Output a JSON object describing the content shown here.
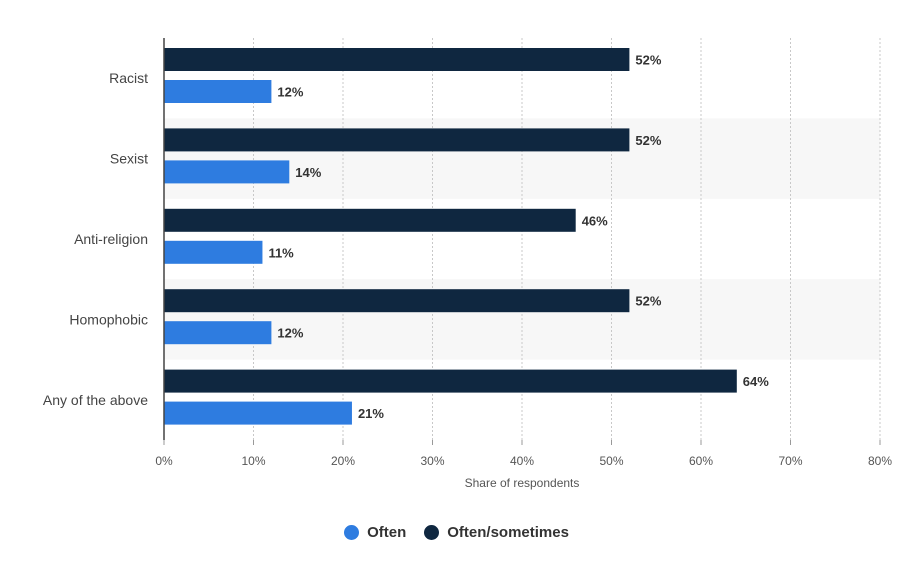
{
  "chart_data": {
    "type": "bar",
    "orientation": "horizontal",
    "categories": [
      "Racist",
      "Sexist",
      "Anti-religion",
      "Homophobic",
      "Any of the above"
    ],
    "series": [
      {
        "name": "Often/sometimes",
        "color": "#0f2740",
        "values": [
          52,
          52,
          46,
          52,
          64
        ],
        "labels": [
          "52%",
          "52%",
          "46%",
          "52%",
          "64%"
        ]
      },
      {
        "name": "Often",
        "color": "#2e7ce0",
        "values": [
          12,
          14,
          11,
          12,
          21
        ],
        "labels": [
          "12%",
          "14%",
          "11%",
          "12%",
          "21%"
        ]
      }
    ],
    "xlim": [
      0,
      80
    ],
    "xticks": [
      0,
      10,
      20,
      30,
      40,
      50,
      60,
      70,
      80
    ],
    "xtick_labels": [
      "0%",
      "10%",
      "20%",
      "30%",
      "40%",
      "50%",
      "60%",
      "70%",
      "80%"
    ],
    "xlabel": "Share of respondents",
    "grid": "vertical dashed",
    "legend_position": "bottom-center"
  },
  "legend": {
    "items": [
      {
        "label": "Often",
        "color": "#2e7ce0"
      },
      {
        "label": "Often/sometimes",
        "color": "#0f2740"
      }
    ]
  }
}
